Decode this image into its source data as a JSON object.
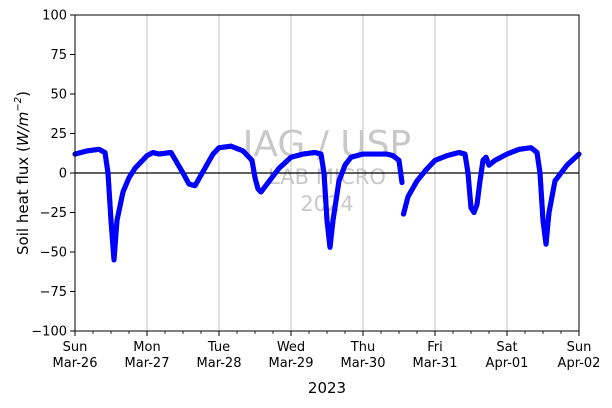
{
  "chart_data": {
    "type": "scatter",
    "title": "",
    "xlabel": "2023",
    "ylabel_parts": [
      "Soil heat flux (",
      "W/m",
      "−2",
      ")"
    ],
    "ylim": [
      -100,
      100
    ],
    "yticks": [
      -100,
      -75,
      -50,
      -25,
      0,
      25,
      50,
      75,
      100
    ],
    "xlim": [
      "2023-03-26",
      "2023-04-02"
    ],
    "xticks": [
      {
        "date": "2023-03-26",
        "line1": "Sun",
        "line2": "Mar-26"
      },
      {
        "date": "2023-03-27",
        "line1": "Mon",
        "line2": "Mar-27"
      },
      {
        "date": "2023-03-28",
        "line1": "Tue",
        "line2": "Mar-28"
      },
      {
        "date": "2023-03-29",
        "line1": "Wed",
        "line2": "Mar-29"
      },
      {
        "date": "2023-03-30",
        "line1": "Thu",
        "line2": "Mar-30"
      },
      {
        "date": "2023-03-31",
        "line1": "Fri",
        "line2": "Mar-31"
      },
      {
        "date": "2023-04-01",
        "line1": "Sat",
        "line2": "Apr-01"
      },
      {
        "date": "2023-04-02",
        "line1": "Sun",
        "line2": "Apr-02"
      }
    ],
    "grid": "vertical",
    "zero_line": true,
    "marker_color": "#0000ff",
    "series": [
      {
        "x": [
          "2023-03-26T00:00",
          "2023-03-26T04:00",
          "2023-03-26T08:00",
          "2023-03-26T10:00",
          "2023-03-26T11:00",
          "2023-03-26T12:00",
          "2023-03-26T13:00",
          "2023-03-26T14:00",
          "2023-03-26T16:00",
          "2023-03-26T18:00",
          "2023-03-26T20:00",
          "2023-03-26T22:00",
          "2023-03-27T00:00",
          "2023-03-27T02:00",
          "2023-03-27T04:00",
          "2023-03-27T08:00",
          "2023-03-27T12:00",
          "2023-03-27T14:00",
          "2023-03-27T16:00",
          "2023-03-27T19:00",
          "2023-03-27T22:00",
          "2023-03-28T00:00",
          "2023-03-28T04:00",
          "2023-03-28T08:00",
          "2023-03-28T11:00",
          "2023-03-28T12:00",
          "2023-03-28T13:00",
          "2023-03-28T14:00",
          "2023-03-28T16:00",
          "2023-03-28T20:00",
          "2023-03-29T00:00",
          "2023-03-29T04:00",
          "2023-03-29T08:00",
          "2023-03-29T10:00",
          "2023-03-29T11:00",
          "2023-03-29T12:00",
          "2023-03-29T13:00",
          "2023-03-29T14:00",
          "2023-03-29T16:00",
          "2023-03-29T18:00",
          "2023-03-29T20:00",
          "2023-03-30T00:00",
          "2023-03-30T04:00",
          "2023-03-30T08:00",
          "2023-03-30T10:00",
          "2023-03-30T12:00",
          "2023-03-30T13:00"
        ],
        "y": [
          12,
          14,
          15,
          13,
          0,
          -30,
          -55,
          -30,
          -12,
          -3,
          3,
          7,
          11,
          13,
          12,
          13,
          0,
          -7,
          -8,
          2,
          12,
          16,
          17,
          14,
          8,
          -3,
          -10,
          -12,
          -7,
          3,
          10,
          12,
          13,
          12,
          0,
          -30,
          -47,
          -30,
          -5,
          5,
          10,
          12,
          12,
          12,
          11,
          8,
          -6
        ]
      },
      {
        "x": [
          "2023-03-30T13:30",
          "2023-03-30T15:00",
          "2023-03-30T18:00",
          "2023-03-30T21:00",
          "2023-03-31T00:00",
          "2023-03-31T04:00",
          "2023-03-31T08:00",
          "2023-03-31T10:00",
          "2023-03-31T11:00",
          "2023-03-31T12:00",
          "2023-03-31T13:00",
          "2023-03-31T14:00",
          "2023-03-31T15:00",
          "2023-03-31T16:00",
          "2023-03-31T17:00",
          "2023-03-31T18:00",
          "2023-03-31T20:00",
          "2023-04-01T00:00",
          "2023-04-01T04:00",
          "2023-04-01T08:00",
          "2023-04-01T10:00",
          "2023-04-01T11:00",
          "2023-04-01T12:00",
          "2023-04-01T13:00",
          "2023-04-01T14:00",
          "2023-04-01T16:00",
          "2023-04-01T20:00",
          "2023-04-02T00:00"
        ],
        "y": [
          -26,
          -15,
          -5,
          2,
          8,
          11,
          13,
          12,
          0,
          -22,
          -25,
          -20,
          -5,
          8,
          10,
          5,
          8,
          12,
          15,
          16,
          13,
          0,
          -30,
          -45,
          -25,
          -5,
          5,
          12
        ]
      }
    ],
    "watermark": [
      "IAG / USP",
      "LAB MICRO",
      "2024"
    ]
  }
}
